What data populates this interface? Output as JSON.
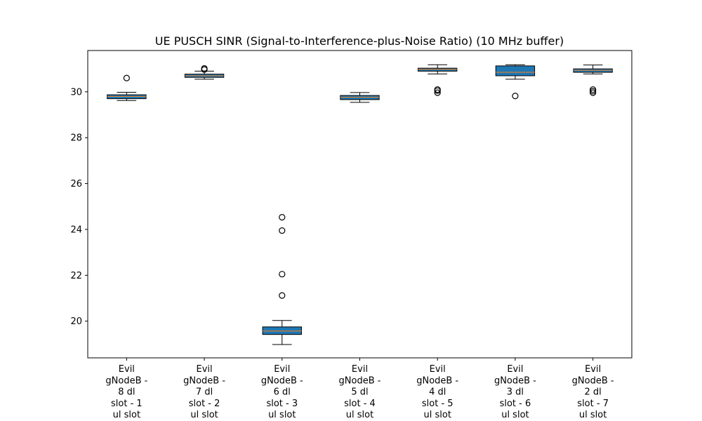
{
  "chart_data": {
    "type": "box",
    "title": "UE PUSCH SINR (Signal-to-Interference-plus-Noise Ratio) (10 MHz buffer)",
    "xlabel": "",
    "ylabel": "",
    "ylim": [
      18.4,
      31.8
    ],
    "yticks": [
      20,
      22,
      24,
      26,
      28,
      30
    ],
    "grid": false,
    "box_color": "#1f77b4",
    "median_color": "#ff7f0e",
    "categories": [
      [
        "Evil",
        "gNodeB -",
        "8 dl",
        "slot - 1",
        "ul slot"
      ],
      [
        "Evil",
        "gNodeB -",
        "7 dl",
        "slot - 2",
        "ul slot"
      ],
      [
        "Evil",
        "gNodeB -",
        "6 dl",
        "slot - 3",
        "ul slot"
      ],
      [
        "Evil",
        "gNodeB -",
        "5 dl",
        "slot - 4",
        "ul slot"
      ],
      [
        "Evil",
        "gNodeB -",
        "4 dl",
        "slot - 5",
        "ul slot"
      ],
      [
        "Evil",
        "gNodeB -",
        "3 dl",
        "slot - 6",
        "ul slot"
      ],
      [
        "Evil",
        "gNodeB -",
        "2 dl",
        "slot - 7",
        "ul slot"
      ]
    ],
    "boxes": [
      {
        "whisker_low": 29.62,
        "q1": 29.7,
        "median": 29.8,
        "q3": 29.87,
        "whisker_high": 29.98,
        "outliers": [
          30.6
        ]
      },
      {
        "whisker_low": 30.55,
        "q1": 30.63,
        "median": 30.7,
        "q3": 30.77,
        "whisker_high": 30.9,
        "outliers": [
          30.97,
          31.02
        ]
      },
      {
        "whisker_low": 18.98,
        "q1": 19.42,
        "median": 19.57,
        "q3": 19.75,
        "whisker_high": 20.03,
        "outliers": [
          21.12,
          22.05,
          23.95,
          24.53
        ]
      },
      {
        "whisker_low": 29.54,
        "q1": 29.66,
        "median": 29.76,
        "q3": 29.84,
        "whisker_high": 29.97,
        "outliers": []
      },
      {
        "whisker_low": 30.78,
        "q1": 30.9,
        "median": 30.98,
        "q3": 31.03,
        "whisker_high": 31.18,
        "outliers": [
          30.1,
          29.96,
          30.05
        ]
      },
      {
        "whisker_low": 30.55,
        "q1": 30.7,
        "median": 30.85,
        "q3": 31.13,
        "whisker_high": 31.18,
        "outliers": [
          29.82
        ]
      },
      {
        "whisker_low": 30.78,
        "q1": 30.85,
        "median": 30.94,
        "q3": 31.0,
        "whisker_high": 31.17,
        "outliers": [
          30.1,
          29.96,
          30.03
        ]
      }
    ]
  }
}
